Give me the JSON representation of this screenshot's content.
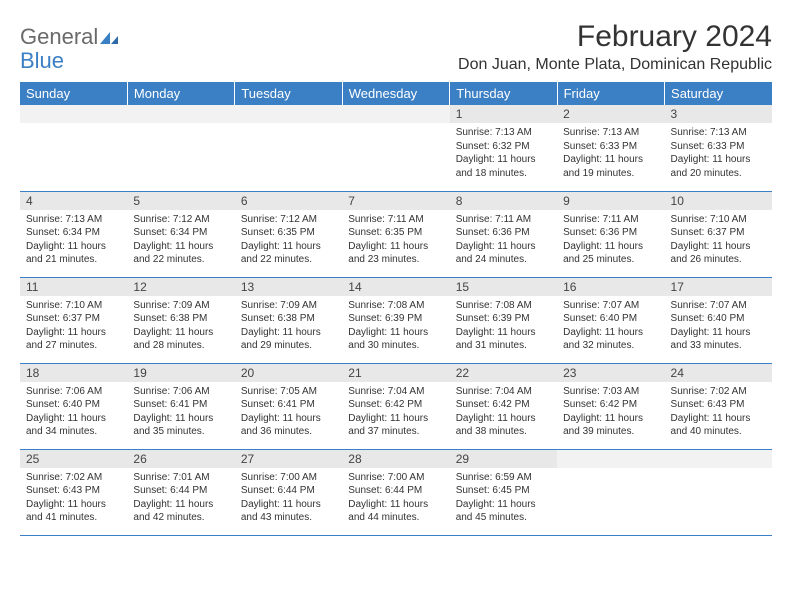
{
  "brand": {
    "text1": "General",
    "text2": "Blue"
  },
  "title": "February 2024",
  "location": "Don Juan, Monte Plata, Dominican Republic",
  "colors": {
    "accent": "#3b7fc4",
    "header_bg": "#3b7fc4",
    "daynum_bg": "#e8e8e8",
    "text": "#333333",
    "logo_gray": "#6a6a6a"
  },
  "daysOfWeek": [
    "Sunday",
    "Monday",
    "Tuesday",
    "Wednesday",
    "Thursday",
    "Friday",
    "Saturday"
  ],
  "weeks": [
    [
      null,
      null,
      null,
      null,
      {
        "n": "1",
        "sunrise": "7:13 AM",
        "sunset": "6:32 PM",
        "daylight": "11 hours and 18 minutes."
      },
      {
        "n": "2",
        "sunrise": "7:13 AM",
        "sunset": "6:33 PM",
        "daylight": "11 hours and 19 minutes."
      },
      {
        "n": "3",
        "sunrise": "7:13 AM",
        "sunset": "6:33 PM",
        "daylight": "11 hours and 20 minutes."
      }
    ],
    [
      {
        "n": "4",
        "sunrise": "7:13 AM",
        "sunset": "6:34 PM",
        "daylight": "11 hours and 21 minutes."
      },
      {
        "n": "5",
        "sunrise": "7:12 AM",
        "sunset": "6:34 PM",
        "daylight": "11 hours and 22 minutes."
      },
      {
        "n": "6",
        "sunrise": "7:12 AM",
        "sunset": "6:35 PM",
        "daylight": "11 hours and 22 minutes."
      },
      {
        "n": "7",
        "sunrise": "7:11 AM",
        "sunset": "6:35 PM",
        "daylight": "11 hours and 23 minutes."
      },
      {
        "n": "8",
        "sunrise": "7:11 AM",
        "sunset": "6:36 PM",
        "daylight": "11 hours and 24 minutes."
      },
      {
        "n": "9",
        "sunrise": "7:11 AM",
        "sunset": "6:36 PM",
        "daylight": "11 hours and 25 minutes."
      },
      {
        "n": "10",
        "sunrise": "7:10 AM",
        "sunset": "6:37 PM",
        "daylight": "11 hours and 26 minutes."
      }
    ],
    [
      {
        "n": "11",
        "sunrise": "7:10 AM",
        "sunset": "6:37 PM",
        "daylight": "11 hours and 27 minutes."
      },
      {
        "n": "12",
        "sunrise": "7:09 AM",
        "sunset": "6:38 PM",
        "daylight": "11 hours and 28 minutes."
      },
      {
        "n": "13",
        "sunrise": "7:09 AM",
        "sunset": "6:38 PM",
        "daylight": "11 hours and 29 minutes."
      },
      {
        "n": "14",
        "sunrise": "7:08 AM",
        "sunset": "6:39 PM",
        "daylight": "11 hours and 30 minutes."
      },
      {
        "n": "15",
        "sunrise": "7:08 AM",
        "sunset": "6:39 PM",
        "daylight": "11 hours and 31 minutes."
      },
      {
        "n": "16",
        "sunrise": "7:07 AM",
        "sunset": "6:40 PM",
        "daylight": "11 hours and 32 minutes."
      },
      {
        "n": "17",
        "sunrise": "7:07 AM",
        "sunset": "6:40 PM",
        "daylight": "11 hours and 33 minutes."
      }
    ],
    [
      {
        "n": "18",
        "sunrise": "7:06 AM",
        "sunset": "6:40 PM",
        "daylight": "11 hours and 34 minutes."
      },
      {
        "n": "19",
        "sunrise": "7:06 AM",
        "sunset": "6:41 PM",
        "daylight": "11 hours and 35 minutes."
      },
      {
        "n": "20",
        "sunrise": "7:05 AM",
        "sunset": "6:41 PM",
        "daylight": "11 hours and 36 minutes."
      },
      {
        "n": "21",
        "sunrise": "7:04 AM",
        "sunset": "6:42 PM",
        "daylight": "11 hours and 37 minutes."
      },
      {
        "n": "22",
        "sunrise": "7:04 AM",
        "sunset": "6:42 PM",
        "daylight": "11 hours and 38 minutes."
      },
      {
        "n": "23",
        "sunrise": "7:03 AM",
        "sunset": "6:42 PM",
        "daylight": "11 hours and 39 minutes."
      },
      {
        "n": "24",
        "sunrise": "7:02 AM",
        "sunset": "6:43 PM",
        "daylight": "11 hours and 40 minutes."
      }
    ],
    [
      {
        "n": "25",
        "sunrise": "7:02 AM",
        "sunset": "6:43 PM",
        "daylight": "11 hours and 41 minutes."
      },
      {
        "n": "26",
        "sunrise": "7:01 AM",
        "sunset": "6:44 PM",
        "daylight": "11 hours and 42 minutes."
      },
      {
        "n": "27",
        "sunrise": "7:00 AM",
        "sunset": "6:44 PM",
        "daylight": "11 hours and 43 minutes."
      },
      {
        "n": "28",
        "sunrise": "7:00 AM",
        "sunset": "6:44 PM",
        "daylight": "11 hours and 44 minutes."
      },
      {
        "n": "29",
        "sunrise": "6:59 AM",
        "sunset": "6:45 PM",
        "daylight": "11 hours and 45 minutes."
      },
      null,
      null
    ]
  ],
  "labels": {
    "sunrise": "Sunrise:",
    "sunset": "Sunset:",
    "daylight": "Daylight:"
  }
}
